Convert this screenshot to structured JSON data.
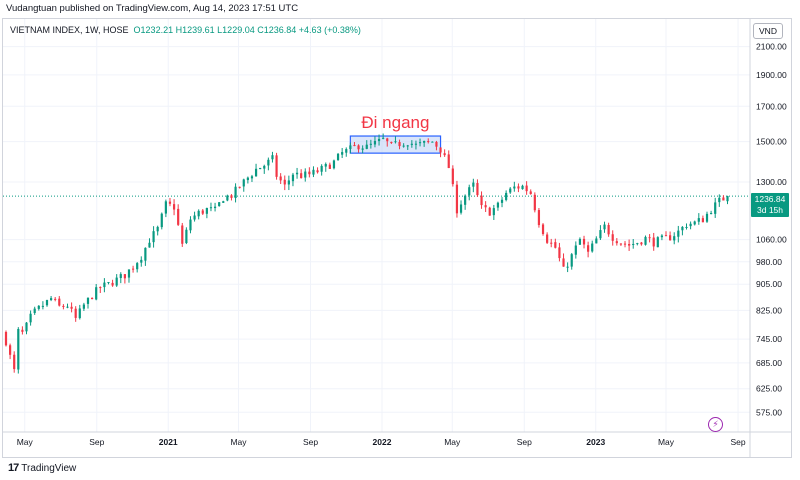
{
  "header": {
    "text": "Vudangtuan published on TradingView.com, Aug 14, 2023 17:51 UTC"
  },
  "symbol_line": {
    "name": "VIETNAM INDEX, 1W, HOSE",
    "open": "O1232.21",
    "high": "H1239.61",
    "low": "L1229.04",
    "close": "C1236.84",
    "change": "+4.63 (+0.38%)"
  },
  "currency_button": "VND",
  "last_price": {
    "value": "1236.84",
    "countdown": "3d 15h"
  },
  "lightning_icon": "lightning-icon",
  "footer": {
    "logo": "TradingView"
  },
  "colors": {
    "up": "#089981",
    "down": "#f23645",
    "last_price_line": "#089981",
    "annotation": "#f23645",
    "box_border": "#2962ff",
    "box_fill": "#bbd0f5",
    "lightning": "#9c27b0"
  },
  "chart_data": {
    "type": "candlestick",
    "title": "VIETNAM INDEX, 1W, HOSE",
    "y_scale": "log",
    "ylim": [
      540,
      2150
    ],
    "y_ticks": [
      {
        "value": 2100,
        "label": "2100.00"
      },
      {
        "value": 1900,
        "label": "1900.00"
      },
      {
        "value": 1700,
        "label": "1700.00"
      },
      {
        "value": 1500,
        "label": "1500.00"
      },
      {
        "value": 1300,
        "label": "1300.00"
      },
      {
        "value": 1060,
        "label": "1060.00"
      },
      {
        "value": 980,
        "label": "980.00"
      },
      {
        "value": 905,
        "label": "905.00"
      },
      {
        "value": 825,
        "label": "825.00"
      },
      {
        "value": 745,
        "label": "745.00"
      },
      {
        "value": 685,
        "label": "685.00"
      },
      {
        "value": 625,
        "label": "625.00"
      },
      {
        "value": 575,
        "label": "575.00"
      }
    ],
    "x_range": [
      "2020-03-30",
      "2023-09-18"
    ],
    "x_ticks": [
      {
        "date": "2020-05-01",
        "label": "May",
        "bold": false
      },
      {
        "date": "2020-09-01",
        "label": "Sep",
        "bold": false
      },
      {
        "date": "2021-01-01",
        "label": "2021",
        "bold": true
      },
      {
        "date": "2021-05-01",
        "label": "May",
        "bold": false
      },
      {
        "date": "2021-09-01",
        "label": "Sep",
        "bold": false
      },
      {
        "date": "2022-01-01",
        "label": "2022",
        "bold": true
      },
      {
        "date": "2022-05-01",
        "label": "May",
        "bold": false
      },
      {
        "date": "2022-09-01",
        "label": "Sep",
        "bold": false
      },
      {
        "date": "2023-01-01",
        "label": "2023",
        "bold": true
      },
      {
        "date": "2023-05-01",
        "label": "May",
        "bold": false
      },
      {
        "date": "2023-09-01",
        "label": "Sep",
        "bold": false
      }
    ],
    "close_path": [
      [
        "2020-03-30",
        740
      ],
      [
        "2020-04-06",
        700
      ],
      [
        "2020-04-13",
        665
      ],
      [
        "2020-04-20",
        765
      ],
      [
        "2020-04-27",
        760
      ],
      [
        "2020-05-04",
        780
      ],
      [
        "2020-05-11",
        805
      ],
      [
        "2020-05-18",
        820
      ],
      [
        "2020-06-01",
        840
      ],
      [
        "2020-06-15",
        860
      ],
      [
        "2020-06-29",
        835
      ],
      [
        "2020-07-13",
        840
      ],
      [
        "2020-07-27",
        800
      ],
      [
        "2020-08-10",
        840
      ],
      [
        "2020-08-24",
        870
      ],
      [
        "2020-09-07",
        895
      ],
      [
        "2020-09-21",
        905
      ],
      [
        "2020-10-05",
        920
      ],
      [
        "2020-10-19",
        935
      ],
      [
        "2020-11-02",
        965
      ],
      [
        "2020-11-16",
        1000
      ],
      [
        "2020-11-30",
        1060
      ],
      [
        "2020-12-14",
        1100
      ],
      [
        "2020-12-28",
        1200
      ],
      [
        "2021-01-11",
        1190
      ],
      [
        "2021-01-25",
        1040
      ],
      [
        "2021-02-08",
        1140
      ],
      [
        "2021-02-22",
        1165
      ],
      [
        "2021-03-08",
        1180
      ],
      [
        "2021-03-22",
        1175
      ],
      [
        "2021-04-05",
        1230
      ],
      [
        "2021-04-19",
        1240
      ],
      [
        "2021-05-03",
        1280
      ],
      [
        "2021-05-17",
        1320
      ],
      [
        "2021-05-31",
        1360
      ],
      [
        "2021-06-14",
        1380
      ],
      [
        "2021-06-28",
        1410
      ],
      [
        "2021-07-05",
        1330
      ],
      [
        "2021-07-19",
        1280
      ],
      [
        "2021-08-02",
        1340
      ],
      [
        "2021-08-16",
        1330
      ],
      [
        "2021-08-30",
        1335
      ],
      [
        "2021-09-13",
        1350
      ],
      [
        "2021-09-27",
        1370
      ],
      [
        "2021-10-11",
        1395
      ],
      [
        "2021-10-25",
        1440
      ],
      [
        "2021-11-08",
        1460
      ],
      [
        "2021-11-22",
        1480
      ],
      [
        "2021-12-06",
        1470
      ],
      [
        "2021-12-20",
        1490
      ],
      [
        "2022-01-03",
        1510
      ],
      [
        "2022-01-17",
        1475
      ],
      [
        "2022-01-31",
        1490
      ],
      [
        "2022-02-14",
        1500
      ],
      [
        "2022-02-28",
        1480
      ],
      [
        "2022-03-14",
        1490
      ],
      [
        "2022-03-28",
        1500
      ],
      [
        "2022-04-11",
        1460
      ],
      [
        "2022-04-25",
        1370
      ],
      [
        "2022-05-09",
        1180
      ],
      [
        "2022-05-23",
        1240
      ],
      [
        "2022-06-06",
        1285
      ],
      [
        "2022-06-20",
        1185
      ],
      [
        "2022-07-04",
        1170
      ],
      [
        "2022-07-18",
        1195
      ],
      [
        "2022-08-01",
        1250
      ],
      [
        "2022-08-15",
        1275
      ],
      [
        "2022-08-29",
        1280
      ],
      [
        "2022-09-12",
        1250
      ],
      [
        "2022-09-26",
        1130
      ],
      [
        "2022-10-10",
        1060
      ],
      [
        "2022-10-24",
        1030
      ],
      [
        "2022-11-07",
        950
      ],
      [
        "2022-11-21",
        1000
      ],
      [
        "2022-12-05",
        1060
      ],
      [
        "2022-12-19",
        1010
      ],
      [
        "2023-01-02",
        1060
      ],
      [
        "2023-01-16",
        1110
      ],
      [
        "2023-01-30",
        1070
      ],
      [
        "2023-02-13",
        1050
      ],
      [
        "2023-02-27",
        1040
      ],
      [
        "2023-03-13",
        1050
      ],
      [
        "2023-03-27",
        1065
      ],
      [
        "2023-04-10",
        1050
      ],
      [
        "2023-04-24",
        1060
      ],
      [
        "2023-05-08",
        1070
      ],
      [
        "2023-05-22",
        1090
      ],
      [
        "2023-06-05",
        1120
      ],
      [
        "2023-06-19",
        1125
      ],
      [
        "2023-07-03",
        1140
      ],
      [
        "2023-07-17",
        1180
      ],
      [
        "2023-07-31",
        1215
      ],
      [
        "2023-08-14",
        1236.84
      ]
    ],
    "annotation": {
      "text": "Đi ngang",
      "box": {
        "x0": "2021-11-08",
        "x1": "2022-04-11",
        "y_low": 1440,
        "y_high": 1530
      }
    },
    "last_price_line": 1236.84
  }
}
